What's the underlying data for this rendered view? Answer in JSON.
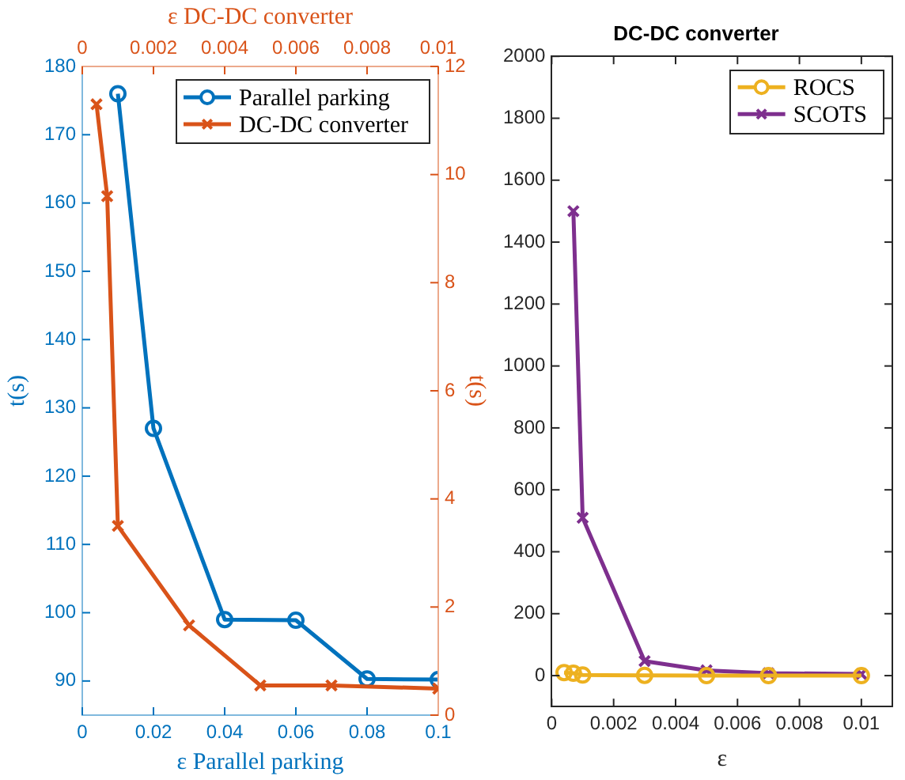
{
  "chart_data": [
    {
      "type": "line",
      "xlabel": "ε Parallel parking",
      "ylabel": "t(s)",
      "xlim": [
        0,
        0.1
      ],
      "xticks": [
        0,
        0.02,
        0.04,
        0.06,
        0.08,
        0.1
      ],
      "ylim": [
        85,
        180
      ],
      "yticks": [
        90,
        100,
        110,
        120,
        130,
        140,
        150,
        160,
        170,
        180
      ],
      "legend": "top right",
      "line_style": "solid",
      "series": [
        {
          "name": "Parallel parking",
          "color": "#0072bd",
          "marker": "circle",
          "x": [
            0.01,
            0.02,
            0.04,
            0.06,
            0.08,
            0.1
          ],
          "values": [
            176,
            127,
            99,
            98.9,
            90.3,
            90.2
          ]
        }
      ]
    },
    {
      "type": "line",
      "xlabel": "ε DC-DC converter",
      "ylabel": "t(s)",
      "xlim": [
        0,
        0.01
      ],
      "xticks": [
        0,
        0.002,
        0.004,
        0.006,
        0.008,
        0.01
      ],
      "ylim": [
        0,
        12
      ],
      "yticks": [
        0,
        2,
        4,
        6,
        8,
        10,
        12
      ],
      "legend": "top right",
      "line_style": "solid",
      "series": [
        {
          "name": "DC-DC converter",
          "color": "#d95319",
          "marker": "cross",
          "x": [
            0.0004,
            0.0007,
            0.001,
            0.003,
            0.005,
            0.007,
            0.01
          ],
          "values": [
            11.3,
            9.6,
            3.5,
            1.66,
            0.55,
            0.55,
            0.49
          ]
        }
      ]
    },
    {
      "type": "line",
      "title": "DC-DC converter",
      "xlabel": "ε",
      "xlim": [
        0,
        0.011
      ],
      "xticks": [
        0,
        0.002,
        0.004,
        0.006,
        0.008,
        0.01
      ],
      "ylim": [
        -100,
        2000
      ],
      "yticks": [
        0,
        200,
        400,
        600,
        800,
        1000,
        1200,
        1400,
        1600,
        1800,
        2000
      ],
      "legend": "top right",
      "line_style": "solid",
      "series": [
        {
          "name": "ROCS",
          "color": "#edb120",
          "marker": "circle",
          "x": [
            0.0004,
            0.0007,
            0.001,
            0.003,
            0.005,
            0.007,
            0.01
          ],
          "values": [
            10,
            8,
            2,
            1,
            0,
            0,
            0
          ]
        },
        {
          "name": "SCOTS",
          "color": "#7e2f8e",
          "marker": "cross",
          "x": [
            0.0007,
            0.001,
            0.003,
            0.005,
            0.007,
            0.01
          ],
          "values": [
            1500,
            510,
            47,
            17,
            8,
            5
          ]
        }
      ]
    }
  ]
}
